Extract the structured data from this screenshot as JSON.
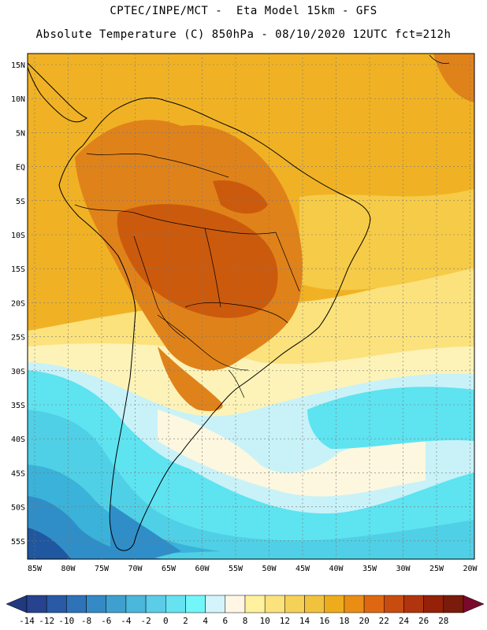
{
  "header": {
    "line1": "CPTEC/INPE/MCT -  Eta Model 15km - GFS",
    "line2": "Absolute Temperature (C) 850hPa - 08/10/2020 12UTC fct=212h"
  },
  "map": {
    "lat_labels": [
      "15N",
      "10N",
      "5N",
      "EQ",
      "5S",
      "10S",
      "15S",
      "20S",
      "25S",
      "30S",
      "35S",
      "40S",
      "45S",
      "50S",
      "55S"
    ],
    "lon_labels": [
      "85W",
      "80W",
      "75W",
      "70W",
      "65W",
      "60W",
      "55W",
      "50W",
      "45W",
      "40W",
      "35W",
      "30W",
      "25W",
      "20W"
    ],
    "colors": {
      "very_warm": "#cc5a0c",
      "warm": "#e0821a",
      "orange": "#f0b224",
      "light_orange": "#f6cb47",
      "yellow": "#fbe27d",
      "pale_yellow": "#fdf3b8",
      "cream": "#fdf7e0",
      "pale_cyan": "#c8f2f8",
      "cyan": "#5ee3f0",
      "aqua": "#4fd0e6",
      "teal": "#3ab2d9",
      "blue": "#2f8ec8",
      "deep_blue": "#1f57a0"
    }
  },
  "colorbar": {
    "labels": [
      "-14",
      "-12",
      "-10",
      "-8",
      "-6",
      "-4",
      "-2",
      "0",
      "2",
      "4",
      "6",
      "8",
      "10",
      "12",
      "14",
      "16",
      "18",
      "20",
      "22",
      "24",
      "26",
      "28"
    ],
    "colors": [
      "#27438f",
      "#2a5aa5",
      "#2e72b8",
      "#3589c4",
      "#3fa0cf",
      "#4bb7da",
      "#5bcde6",
      "#66e2f0",
      "#72f6fa",
      "#d4f4fb",
      "#fff7e4",
      "#fff19e",
      "#fbe27d",
      "#f6d158",
      "#f1c23e",
      "#eeac1c",
      "#e98d15",
      "#de6812",
      "#c84c0f",
      "#b0340d",
      "#942108",
      "#7b1b0c"
    ],
    "left_arrow_color": "#20397f",
    "right_arrow_color": "#7a0a2c"
  }
}
